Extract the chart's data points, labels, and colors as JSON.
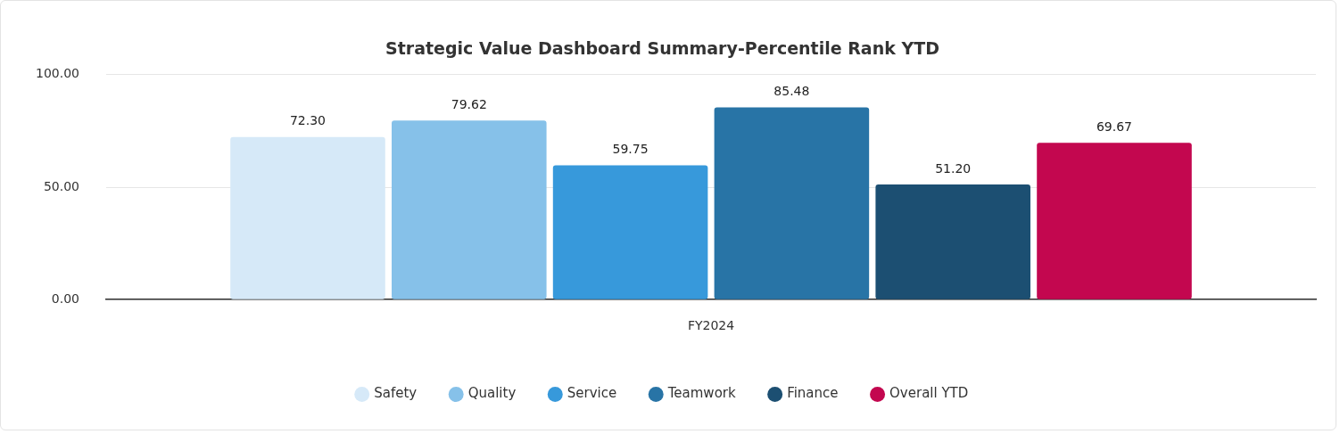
{
  "chart_data": {
    "type": "bar",
    "title": "Strategic Value Dashboard Summary-Percentile Rank YTD",
    "categories": [
      "FY2024"
    ],
    "series": [
      {
        "name": "Safety",
        "color": "#d6e9f8",
        "values": [
          72.3
        ],
        "value_labels": [
          "72.30"
        ]
      },
      {
        "name": "Quality",
        "color": "#86c1e9",
        "values": [
          79.62
        ],
        "value_labels": [
          "79.62"
        ]
      },
      {
        "name": "Service",
        "color": "#3799db",
        "values": [
          59.75
        ],
        "value_labels": [
          "59.75"
        ]
      },
      {
        "name": "Teamwork",
        "color": "#2874a6",
        "values": [
          85.48
        ],
        "value_labels": [
          "85.48"
        ]
      },
      {
        "name": "Finance",
        "color": "#1c4f72",
        "values": [
          51.2
        ],
        "value_labels": [
          "51.20"
        ]
      },
      {
        "name": "Overall YTD",
        "color": "#c3074f",
        "values": [
          69.67
        ],
        "value_labels": [
          "69.67"
        ]
      }
    ],
    "ylim": [
      0,
      100
    ],
    "yticks": [
      {
        "value": 0,
        "label": "0.00"
      },
      {
        "value": 50,
        "label": "50.00"
      },
      {
        "value": 100,
        "label": "100.00"
      }
    ],
    "grid": "y",
    "legend": "bottom"
  }
}
